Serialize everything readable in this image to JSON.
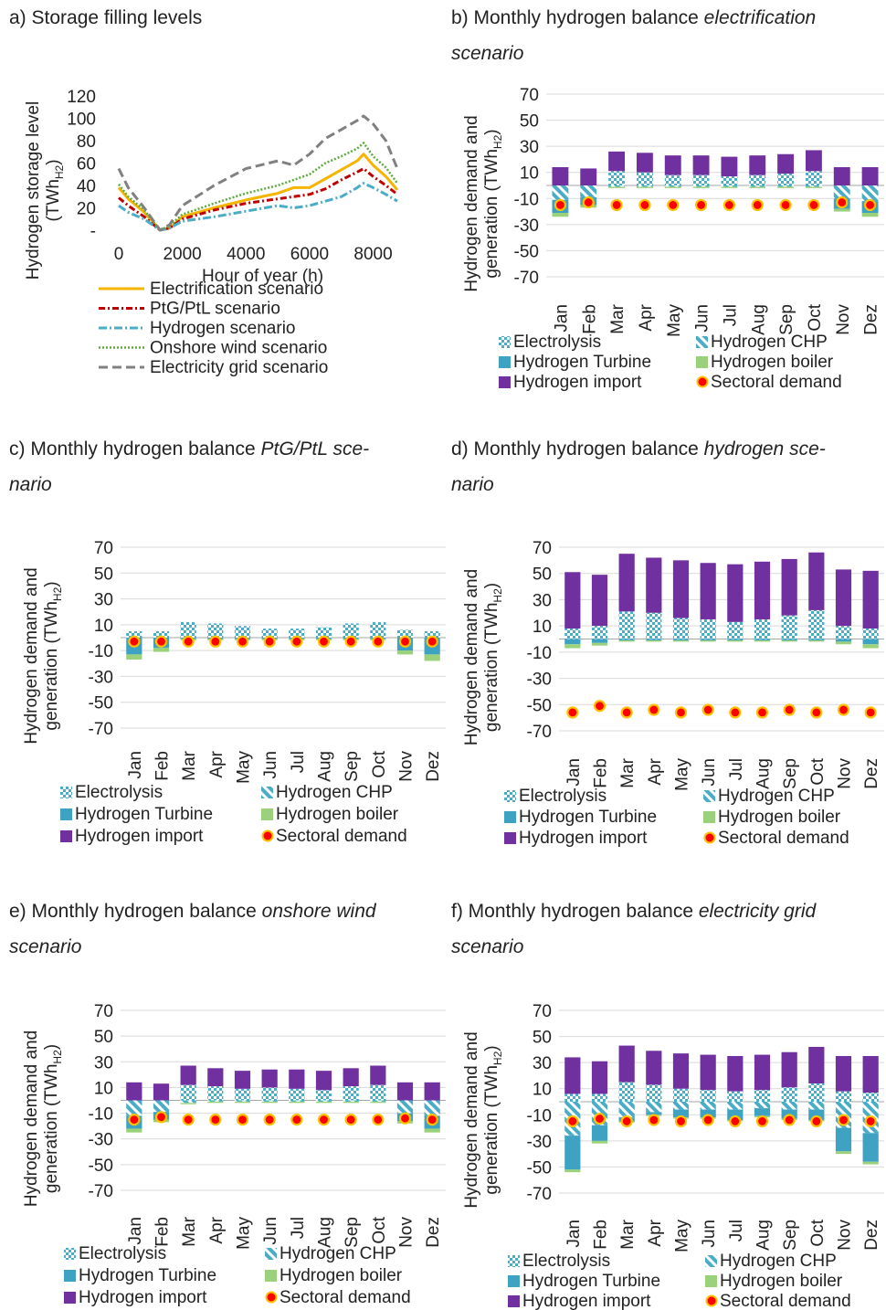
{
  "colors": {
    "electrification": "#f5b400",
    "ptg": "#c00000",
    "hydrogen": "#4bacc6",
    "onshore": "#5cab3c",
    "grid": "#808080",
    "electrolysis": "#4bacc6",
    "chp": "#4bacc6",
    "turbine": "#3ea3c3",
    "boiler": "#9bd17a",
    "import": "#7030a0",
    "demand_fill": "#ff0000",
    "demand_edge": "#ffc000",
    "grid_line": "#d9d9d9",
    "axis_line": "#a6a6a6"
  },
  "legend_bar": {
    "electrolysis": "Electrolysis",
    "chp": "Hydrogen CHP",
    "turbine": "Hydrogen Turbine",
    "boiler": "Hydrogen boiler",
    "import": "Hydrogen import",
    "demand": "Sectoral demand"
  },
  "chart_data": [
    {
      "id": "a",
      "type": "line",
      "title": "a) Storage filling levels",
      "xlabel": "Hour of year (h)",
      "ylabel": "Hydrogen storage level (TWhH2)",
      "ylabel_main": "Hydrogen storage level",
      "ylabel_unit": "(TWh",
      "ylabel_sub": "H2",
      "ylabel_end": ")",
      "xlim": [
        0,
        8760
      ],
      "ylim": [
        0,
        120
      ],
      "xticks": [
        0,
        2000,
        4000,
        6000,
        8000
      ],
      "xtick_labels": [
        "0",
        "2000",
        "4000",
        "6000",
        "8000"
      ],
      "yticks": [
        0,
        20,
        40,
        60,
        80,
        100,
        120
      ],
      "ytick_labels": [
        "-",
        "20",
        "40",
        "60",
        "80",
        "100",
        "120"
      ],
      "series": [
        {
          "name": "Electrification scenario",
          "key": "electrification",
          "dash": "",
          "x": [
            0,
            300,
            800,
            1300,
            1600,
            2000,
            3000,
            4000,
            5000,
            5500,
            6000,
            6500,
            7000,
            7500,
            7700,
            8000,
            8400,
            8760
          ],
          "y": [
            38,
            28,
            16,
            0,
            2,
            12,
            20,
            27,
            33,
            38,
            38,
            46,
            54,
            62,
            68,
            58,
            48,
            36
          ]
        },
        {
          "name": "PtG/PtL scenario",
          "key": "ptg",
          "dash": "7,3,2,3",
          "x": [
            0,
            300,
            800,
            1300,
            1600,
            2000,
            3000,
            4000,
            5000,
            6000,
            6500,
            7000,
            7500,
            7700,
            8000,
            8400,
            8760
          ],
          "y": [
            29,
            22,
            12,
            0,
            2,
            10,
            18,
            24,
            28,
            32,
            37,
            45,
            52,
            55,
            48,
            40,
            32
          ]
        },
        {
          "name": "Hydrogen scenario",
          "key": "hydrogen",
          "dash": "9,3,2,3",
          "x": [
            0,
            300,
            800,
            1300,
            1600,
            2000,
            3000,
            4000,
            5000,
            5500,
            6000,
            7000,
            7500,
            7700,
            8000,
            8400,
            8760
          ],
          "y": [
            22,
            16,
            10,
            0,
            2,
            8,
            12,
            17,
            22,
            20,
            22,
            30,
            38,
            42,
            38,
            32,
            26
          ]
        },
        {
          "name": "Onshore wind scenario",
          "key": "onshore",
          "dash": "2,2",
          "x": [
            0,
            300,
            800,
            1300,
            1600,
            2000,
            3000,
            4000,
            5000,
            6000,
            6500,
            7000,
            7500,
            7700,
            8000,
            8400,
            8760
          ],
          "y": [
            41,
            30,
            18,
            0,
            4,
            14,
            24,
            33,
            40,
            50,
            60,
            66,
            73,
            78,
            66,
            56,
            42
          ]
        },
        {
          "name": "Electricity grid scenario",
          "key": "grid",
          "dash": "10,5",
          "x": [
            0,
            300,
            800,
            1300,
            1600,
            2000,
            3000,
            4000,
            5000,
            5500,
            6000,
            6500,
            7000,
            7500,
            7700,
            8000,
            8400,
            8760
          ],
          "y": [
            55,
            38,
            20,
            0,
            5,
            22,
            40,
            55,
            62,
            58,
            68,
            82,
            90,
            98,
            102,
            95,
            80,
            55
          ]
        }
      ]
    },
    {
      "id": "b",
      "type": "bar",
      "title_plain": "b) Monthly hydrogen balance ",
      "title_em1": "electrification",
      "title_em2": "scenario",
      "ylabel_1": "Hydrogen demand and",
      "ylabel_2": "generation (TWh",
      "ylabel_sub": "H2",
      "ylabel_end": ")",
      "ylim": [
        -70,
        70
      ],
      "yticks": [
        70,
        50,
        30,
        10,
        -10,
        -30,
        -50,
        -70
      ],
      "categories": [
        "Jan",
        "Feb",
        "Mar",
        "Apr",
        "May",
        "Jun",
        "Jul",
        "Aug",
        "Sep",
        "Oct",
        "Nov",
        "Dez"
      ],
      "series": [
        {
          "key": "electrolysis",
          "name": "Electrolysis",
          "values": [
            0,
            0,
            11,
            10,
            8,
            8,
            7,
            8,
            9,
            11,
            0,
            0
          ]
        },
        {
          "key": "import",
          "name": "Hydrogen import",
          "values": [
            14,
            13,
            15,
            15,
            15,
            15,
            15,
            15,
            15,
            16,
            14,
            14
          ]
        },
        {
          "key": "chp",
          "name": "Hydrogen CHP",
          "values": [
            -11,
            -9,
            -1,
            -1,
            -1,
            -1,
            -1,
            -1,
            -1,
            -1,
            -10,
            -12
          ]
        },
        {
          "key": "turbine",
          "name": "Hydrogen Turbine",
          "values": [
            -10,
            -6,
            0,
            0,
            0,
            0,
            0,
            0,
            0,
            0,
            -8,
            -9
          ]
        },
        {
          "key": "boiler",
          "name": "Hydrogen boiler",
          "values": [
            -3,
            -2,
            -1,
            -1,
            -1,
            -1,
            -1,
            -1,
            -1,
            -1,
            -2,
            -3
          ]
        },
        {
          "key": "demand",
          "name": "Sectoral demand",
          "values": [
            -15,
            -13,
            -15,
            -15,
            -15,
            -15,
            -15,
            -15,
            -15,
            -15,
            -13,
            -15
          ]
        }
      ],
      "pos_top": [
        18,
        17,
        26,
        25,
        23,
        23,
        22,
        23,
        24,
        27,
        19,
        19
      ],
      "pos_zero": [
        4,
        4,
        0,
        0,
        0,
        0,
        0,
        0,
        0,
        0,
        4,
        4
      ]
    },
    {
      "id": "c",
      "type": "bar",
      "title_plain": "c) Monthly hydrogen balance ",
      "title_em1": "PtG/PtL sce-",
      "title_em2": "nario",
      "ylabel_1": "Hydrogen demand and",
      "ylabel_2": "generation (TWh",
      "ylabel_sub": "H2",
      "ylabel_end": ")",
      "ylim": [
        -70,
        70
      ],
      "yticks": [
        70,
        50,
        30,
        10,
        -10,
        -30,
        -50,
        -70
      ],
      "categories": [
        "Jan",
        "Feb",
        "Mar",
        "Apr",
        "May",
        "Jun",
        "Jul",
        "Aug",
        "Sep",
        "Oct",
        "Nov",
        "Dez"
      ],
      "series": [
        {
          "key": "electrolysis",
          "name": "Electrolysis",
          "values": [
            5,
            5,
            12,
            11,
            9,
            7,
            7,
            8,
            11,
            12,
            6,
            5
          ]
        },
        {
          "key": "import",
          "name": "Hydrogen import",
          "values": [
            0,
            0,
            0,
            0,
            0,
            0,
            0,
            0,
            0,
            0,
            0,
            0
          ]
        },
        {
          "key": "chp",
          "name": "Hydrogen CHP",
          "values": [
            0,
            0,
            0,
            0,
            0,
            0,
            0,
            0,
            0,
            0,
            0,
            0
          ]
        },
        {
          "key": "turbine",
          "name": "Hydrogen Turbine",
          "values": [
            -13,
            -8,
            -1,
            -1,
            -1,
            -1,
            -1,
            -1,
            -1,
            -1,
            -10,
            -13
          ]
        },
        {
          "key": "boiler",
          "name": "Hydrogen boiler",
          "values": [
            -4,
            -3,
            -1,
            -1,
            -1,
            -1,
            -1,
            -1,
            -1,
            -1,
            -3,
            -5
          ]
        },
        {
          "key": "demand",
          "name": "Sectoral demand",
          "values": [
            -3,
            -3,
            -3,
            -3,
            -3,
            -3,
            -3,
            -3,
            -3,
            -3,
            -3,
            -3
          ]
        }
      ]
    },
    {
      "id": "d",
      "type": "bar",
      "title_plain": "d) Monthly hydrogen balance ",
      "title_em1": "hydrogen sce-",
      "title_em2": "nario",
      "ylabel_1": "Hydrogen demand and",
      "ylabel_2": "generation (TWh",
      "ylabel_sub": "H2",
      "ylabel_end": ")",
      "ylim": [
        -70,
        70
      ],
      "yticks": [
        70,
        50,
        30,
        10,
        -10,
        -30,
        -50,
        -70
      ],
      "categories": [
        "Jan",
        "Feb",
        "Mar",
        "Apr",
        "May",
        "Jun",
        "Jul",
        "Aug",
        "Sep",
        "Oct",
        "Nov",
        "Dez"
      ],
      "series": [
        {
          "key": "electrolysis",
          "name": "Electrolysis",
          "values": [
            8,
            10,
            21,
            20,
            16,
            15,
            13,
            15,
            18,
            22,
            10,
            8
          ]
        },
        {
          "key": "import",
          "name": "Hydrogen import",
          "values": [
            43,
            39,
            44,
            42,
            44,
            43,
            44,
            44,
            43,
            44,
            43,
            44
          ]
        },
        {
          "key": "chp",
          "name": "Hydrogen CHP",
          "values": [
            0,
            0,
            0,
            0,
            0,
            0,
            0,
            0,
            0,
            0,
            0,
            0
          ]
        },
        {
          "key": "turbine",
          "name": "Hydrogen Turbine",
          "values": [
            -4,
            -3,
            -1,
            -1,
            -1,
            -1,
            -1,
            -1,
            -1,
            -1,
            -2,
            -4
          ]
        },
        {
          "key": "boiler",
          "name": "Hydrogen boiler",
          "values": [
            -3,
            -2,
            -1,
            -1,
            -1,
            -1,
            -1,
            -1,
            -1,
            -1,
            -2,
            -3
          ]
        },
        {
          "key": "demand",
          "name": "Sectoral demand",
          "values": [
            -56,
            -51,
            -56,
            -54,
            -56,
            -54,
            -56,
            -56,
            -54,
            -56,
            -54,
            -56
          ]
        }
      ]
    },
    {
      "id": "e",
      "type": "bar",
      "title_plain": "e) Monthly hydrogen balance ",
      "title_em1": "onshore wind",
      "title_em2": "scenario",
      "ylabel_1": "Hydrogen demand and",
      "ylabel_2": "generation (TWh",
      "ylabel_sub": "H2",
      "ylabel_end": ")",
      "ylim": [
        -70,
        70
      ],
      "yticks": [
        70,
        50,
        30,
        10,
        -10,
        -30,
        -50,
        -70
      ],
      "categories": [
        "Jan",
        "Feb",
        "Mar",
        "Apr",
        "May",
        "Jun",
        "Jul",
        "Aug",
        "Sep",
        "Oct",
        "Nov",
        "Dez"
      ],
      "series": [
        {
          "key": "electrolysis",
          "name": "Electrolysis",
          "values": [
            0,
            0,
            12,
            11,
            9,
            10,
            9,
            8,
            11,
            12,
            0,
            0
          ]
        },
        {
          "key": "import",
          "name": "Hydrogen import",
          "values": [
            14,
            13,
            15,
            14,
            14,
            14,
            15,
            15,
            14,
            15,
            14,
            14
          ]
        },
        {
          "key": "chp",
          "name": "Hydrogen CHP",
          "values": [
            -12,
            -9,
            -2,
            -1,
            -1,
            -1,
            -1,
            -1,
            -1,
            -1,
            -10,
            -12
          ]
        },
        {
          "key": "turbine",
          "name": "Hydrogen Turbine",
          "values": [
            -10,
            -6,
            0,
            0,
            0,
            0,
            0,
            0,
            0,
            0,
            -6,
            -10
          ]
        },
        {
          "key": "boiler",
          "name": "Hydrogen boiler",
          "values": [
            -3,
            -2,
            -1,
            -1,
            -1,
            -1,
            -1,
            -1,
            -1,
            -1,
            -2,
            -3
          ]
        },
        {
          "key": "demand",
          "name": "Sectoral demand",
          "values": [
            -15,
            -13,
            -15,
            -15,
            -15,
            -15,
            -15,
            -15,
            -15,
            -15,
            -14,
            -15
          ]
        }
      ],
      "pos_zero": [
        2,
        2,
        0,
        0,
        0,
        0,
        0,
        0,
        0,
        0,
        4,
        2
      ]
    },
    {
      "id": "f",
      "type": "bar",
      "title_plain": "f) Monthly hydrogen balance ",
      "title_em1": "electricity grid",
      "title_em2": "scenario",
      "ylabel_1": "Hydrogen demand and",
      "ylabel_2": "generation (TWh",
      "ylabel_sub": "H2",
      "ylabel_end": ")",
      "ylim": [
        -70,
        70
      ],
      "yticks": [
        70,
        50,
        30,
        10,
        -10,
        -30,
        -50,
        -70
      ],
      "categories": [
        "Jan",
        "Feb",
        "Mar",
        "Apr",
        "May",
        "Jun",
        "Jul",
        "Aug",
        "Sep",
        "Oct",
        "Nov",
        "Dez"
      ],
      "series": [
        {
          "key": "electrolysis",
          "name": "Electrolysis",
          "values": [
            6,
            6,
            15,
            13,
            10,
            9,
            8,
            9,
            11,
            14,
            8,
            7
          ]
        },
        {
          "key": "import",
          "name": "Hydrogen import",
          "values": [
            28,
            25,
            28,
            26,
            27,
            27,
            27,
            27,
            27,
            28,
            27,
            28
          ]
        },
        {
          "key": "chp",
          "name": "Hydrogen CHP",
          "values": [
            -26,
            -18,
            -12,
            -8,
            -6,
            -6,
            -6,
            -5,
            -6,
            -6,
            -20,
            -24
          ]
        },
        {
          "key": "turbine",
          "name": "Hydrogen Turbine",
          "values": [
            -26,
            -12,
            -3,
            -2,
            -6,
            -6,
            -8,
            -6,
            -7,
            -8,
            -18,
            -22
          ]
        },
        {
          "key": "boiler",
          "name": "Hydrogen boiler",
          "values": [
            -2,
            -2,
            -1,
            -1,
            -1,
            -1,
            -1,
            -1,
            -1,
            -1,
            -2,
            -2
          ]
        },
        {
          "key": "demand",
          "name": "Sectoral demand",
          "values": [
            -15,
            -13,
            -15,
            -14,
            -15,
            -14,
            -15,
            -15,
            -14,
            -15,
            -14,
            -15
          ]
        }
      ]
    }
  ]
}
